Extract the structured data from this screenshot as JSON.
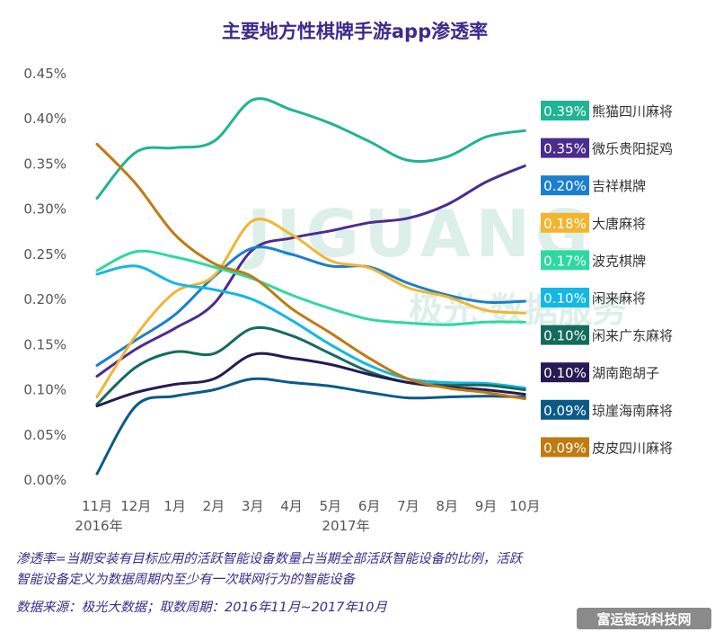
{
  "chart_data": {
    "type": "line",
    "title": "主要地方性棋牌手游app渗透率",
    "y_ticks": [
      "0.45%",
      "0.40%",
      "0.35%",
      "0.30%",
      "0.25%",
      "0.20%",
      "0.15%",
      "0.10%",
      "0.05%",
      "0.00%"
    ],
    "ylim": [
      0,
      0.45
    ],
    "x_ticks": [
      "11月",
      "12月",
      "1月",
      "2月",
      "3月",
      "4月",
      "5月",
      "6月",
      "7月",
      "8月",
      "9月",
      "10月"
    ],
    "year_labels": [
      "2016年",
      "2017年"
    ],
    "series": [
      {
        "name": "熊猫四川麻将",
        "label": "0.39%",
        "color": "#1fb493",
        "values": [
          0.312,
          0.363,
          0.368,
          0.375,
          0.421,
          0.41,
          0.395,
          0.375,
          0.354,
          0.358,
          0.38,
          0.387
        ]
      },
      {
        "name": "微乐贵阳捉鸡",
        "label": "0.35%",
        "color": "#4b2c8f",
        "values": [
          0.115,
          0.145,
          0.168,
          0.195,
          0.255,
          0.268,
          0.276,
          0.285,
          0.29,
          0.305,
          0.33,
          0.348
        ]
      },
      {
        "name": "吉祥棋牌",
        "label": "0.20%",
        "color": "#1a7fcf",
        "values": [
          0.127,
          0.155,
          0.183,
          0.225,
          0.257,
          0.25,
          0.237,
          0.236,
          0.218,
          0.205,
          0.197,
          0.198
        ]
      },
      {
        "name": "大唐麻将",
        "label": "0.18%",
        "color": "#f2b530",
        "values": [
          0.092,
          0.16,
          0.208,
          0.226,
          0.287,
          0.272,
          0.243,
          0.235,
          0.213,
          0.203,
          0.188,
          0.185
        ]
      },
      {
        "name": "波克棋牌",
        "label": "0.17%",
        "color": "#2ed9a0",
        "values": [
          0.232,
          0.253,
          0.247,
          0.236,
          0.223,
          0.205,
          0.19,
          0.178,
          0.174,
          0.172,
          0.175,
          0.175
        ]
      },
      {
        "name": "闲来麻将",
        "label": "0.10%",
        "color": "#12b8e6",
        "values": [
          0.228,
          0.237,
          0.218,
          0.211,
          0.2,
          0.177,
          0.15,
          0.127,
          0.112,
          0.108,
          0.107,
          0.102
        ]
      },
      {
        "name": "闲来广东麻将",
        "label": "0.10%",
        "color": "#136b5e",
        "values": [
          0.084,
          0.125,
          0.142,
          0.14,
          0.168,
          0.16,
          0.14,
          0.12,
          0.108,
          0.105,
          0.105,
          0.1
        ]
      },
      {
        "name": "湖南跑胡子",
        "label": "0.10%",
        "color": "#261a52",
        "values": [
          0.082,
          0.097,
          0.106,
          0.112,
          0.139,
          0.135,
          0.128,
          0.117,
          0.108,
          0.103,
          0.1,
          0.095
        ]
      },
      {
        "name": "琼崖海南麻将",
        "label": "0.09%",
        "color": "#0a5a86",
        "values": [
          0.007,
          0.082,
          0.093,
          0.1,
          0.112,
          0.108,
          0.104,
          0.097,
          0.091,
          0.092,
          0.093,
          0.092
        ]
      },
      {
        "name": "皮皮四川麻将",
        "label": "0.09%",
        "color": "#c07a10",
        "values": [
          0.372,
          0.328,
          0.272,
          0.24,
          0.225,
          0.19,
          0.163,
          0.135,
          0.112,
          0.102,
          0.097,
          0.09
        ]
      }
    ]
  },
  "watermark": {
    "brand": "JIGUANG",
    "subtitle": "极光·数据服务"
  },
  "notes": {
    "line1": "渗透率=当期安装有目标应用的活跃智能设备数量占当期全部活跃智能设备的比例，活跃",
    "line2": "智能设备定义为数据周期内至少有一次联网行为的智能设备",
    "source": "数据来源：极光大数据；取数周期：2016年11月~2017年10月"
  },
  "site_badge": "富运链动科技网",
  "colors": {
    "title": "#3d2a8c",
    "badge_bg": "#8a8a8a"
  }
}
